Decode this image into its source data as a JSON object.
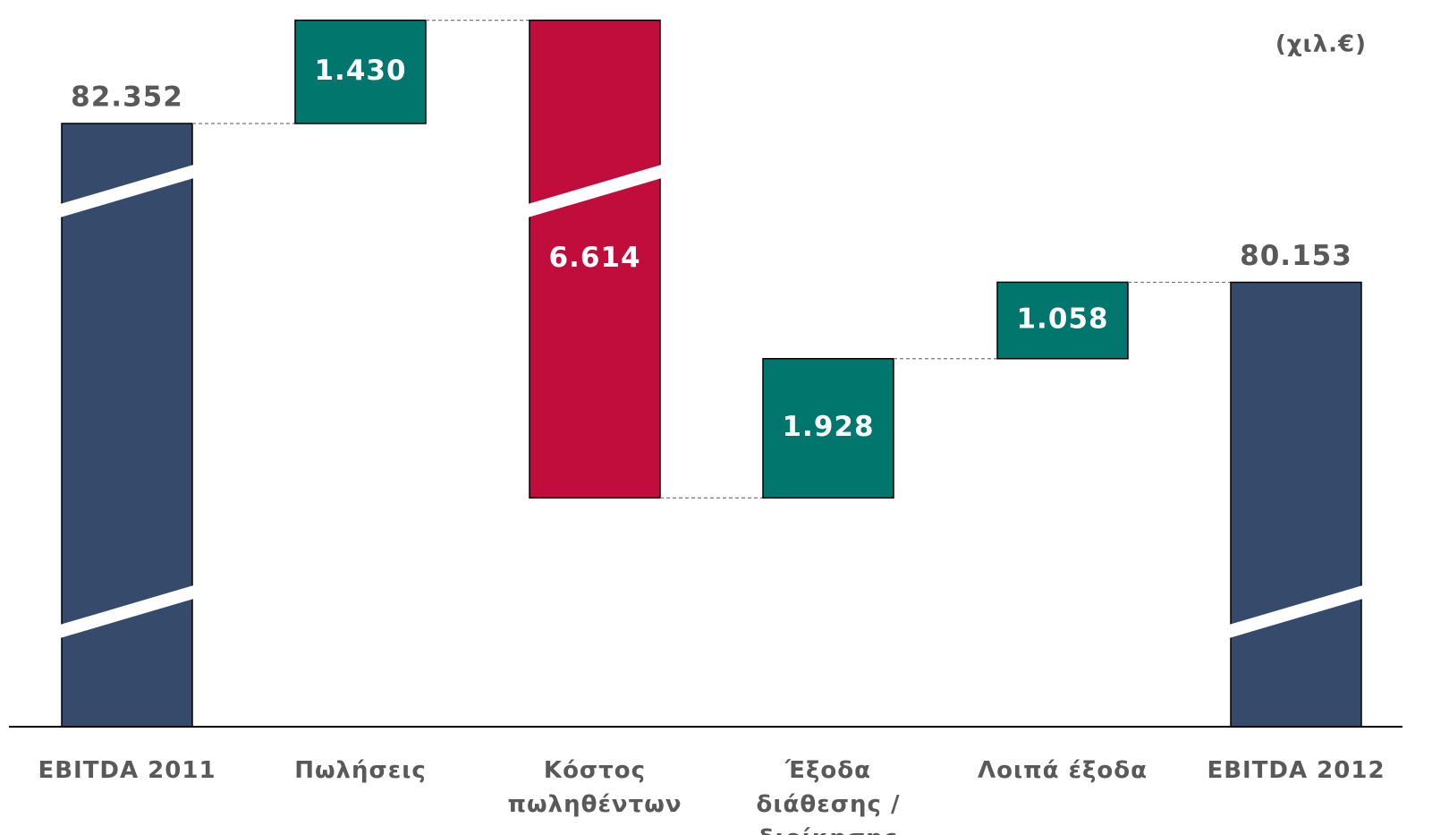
{
  "chart_data": {
    "type": "waterfall",
    "unit": "(χιλ.€)",
    "categories": [
      "EBITDA 2011",
      "Πωλήσεις",
      "Κόστος πωληθέντων",
      "Έξοδα διάθεσης / διοίκησης",
      "Λοιπά έξοδα",
      "EBITDA 2012"
    ],
    "values": [
      82352,
      1430,
      -6614,
      1928,
      1058,
      80153
    ],
    "value_labels": [
      "82.352",
      "1.430",
      "6.614",
      "1.928",
      "1.058",
      "80.153"
    ],
    "totals": [
      true,
      false,
      false,
      false,
      false,
      true
    ],
    "colors": [
      "#364a6b",
      "#00766c",
      "#c00d3c",
      "#00766c",
      "#00766c",
      "#364a6b"
    ],
    "ylim": [
      74000,
      84000
    ]
  }
}
